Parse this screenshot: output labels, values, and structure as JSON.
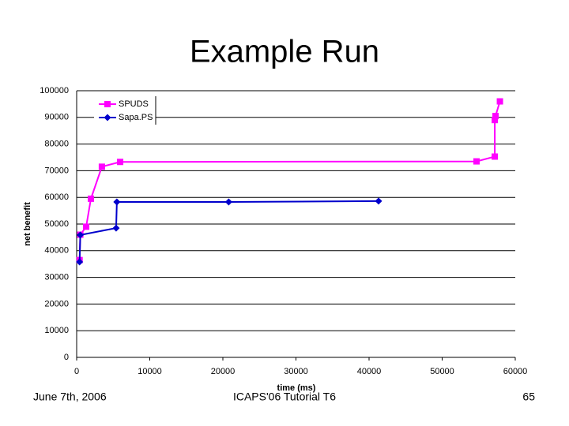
{
  "chart_data": {
    "type": "line",
    "title": "Example Run",
    "x_label": "time (ms)",
    "y_label": "net benefit",
    "series": [
      {
        "name": "SPUDS",
        "color": "#ff00ff",
        "marker": "square",
        "x": [
          400,
          500,
          1300,
          1950,
          3450,
          5950,
          54700,
          57200,
          57200,
          57300,
          57900
        ],
        "values": [
          36500,
          46000,
          49000,
          59500,
          71500,
          73300,
          73500,
          75300,
          89000,
          90500,
          96000
        ]
      },
      {
        "name": "Sapa.PS",
        "color": "#0000cc",
        "marker": "diamond",
        "x": [
          400,
          500,
          5400,
          5500,
          20800,
          41300
        ],
        "values": [
          35800,
          45900,
          48500,
          58300,
          58300,
          58600
        ]
      }
    ],
    "xlim": [
      0,
      60000
    ],
    "xticks": [
      0,
      10000,
      20000,
      30000,
      40000,
      50000,
      60000
    ],
    "ylim": [
      0,
      100000
    ],
    "yticks": [
      0,
      10000,
      20000,
      30000,
      40000,
      50000,
      60000,
      70000,
      80000,
      90000,
      100000
    ],
    "grid": true,
    "legend": "top-left"
  },
  "footer": {
    "left": "June 7th, 2006",
    "center": "ICAPS'06 Tutorial T6",
    "right": "65"
  }
}
